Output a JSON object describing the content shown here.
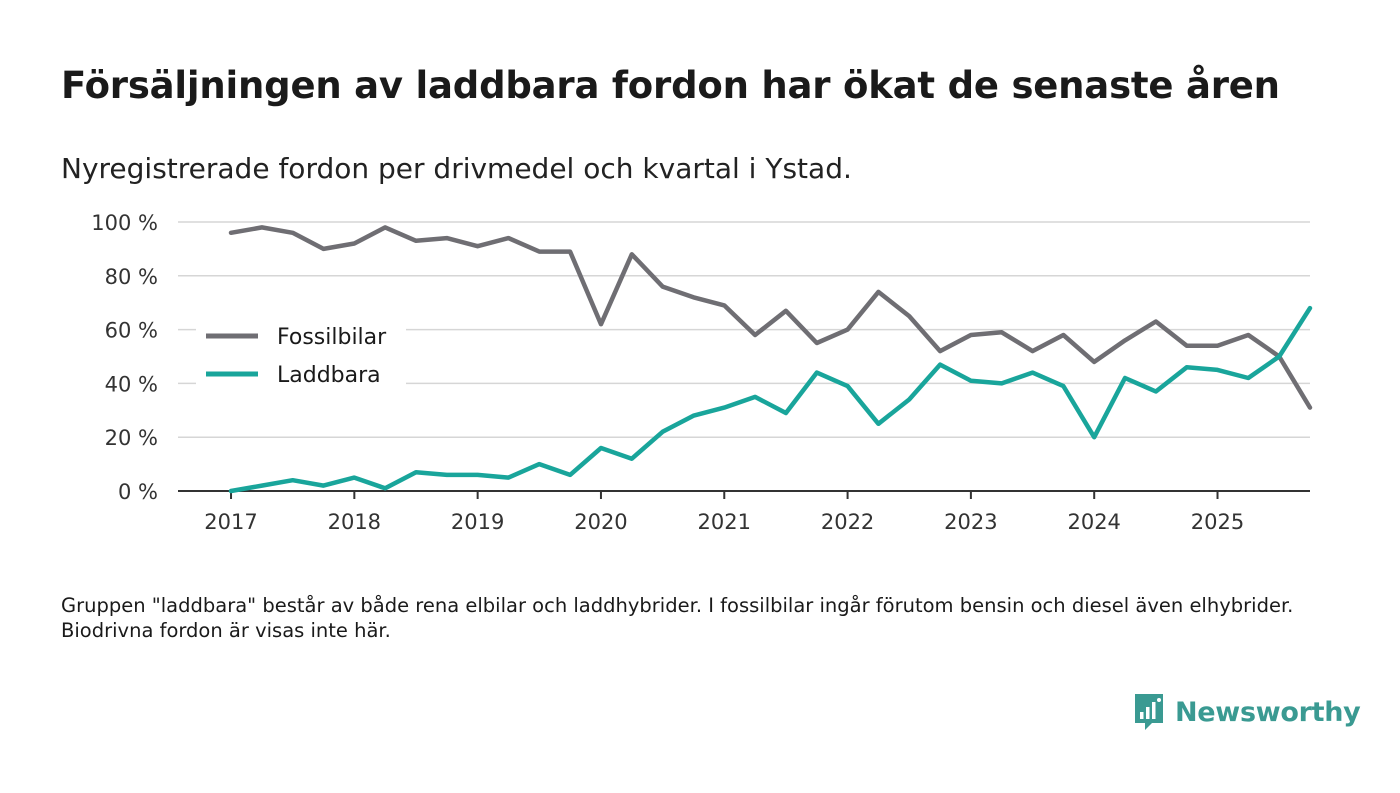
{
  "title": "Försäljningen av laddbara fordon har ökat de senaste åren",
  "subtitle": "Nyregistrerade fordon per drivmedel och kvartal i Ystad.",
  "note": "Gruppen \"laddbara\" består av både rena elbilar och laddhybrider. I fossilbilar ingår förutom bensin och diesel även elhybrider. Biodrivna fordon är visas inte här.",
  "brand": {
    "name": "Newsworthy",
    "color": "#3a9a92",
    "icon": "newsworthy-logo-icon"
  },
  "chart_data": {
    "type": "line",
    "ylim": [
      0,
      100
    ],
    "y_ticks": [
      0,
      20,
      40,
      60,
      80,
      100
    ],
    "y_tick_labels": [
      "0 %",
      "20 %",
      "40 %",
      "60 %",
      "80 %",
      "100 %"
    ],
    "x_tick_labels": [
      "2017",
      "2018",
      "2019",
      "2020",
      "2021",
      "2022",
      "2023",
      "2024",
      "2025"
    ],
    "x_tick_values": [
      2017,
      2018,
      2019,
      2020,
      2021,
      2022,
      2023,
      2024,
      2025
    ],
    "x_range": [
      2016.57,
      2025.75
    ],
    "grid": true,
    "legend_position": "left",
    "series": [
      {
        "name": "Fossilbilar",
        "color": "#6f6e73",
        "x": [
          2017,
          2017.25,
          2017.5,
          2017.75,
          2018,
          2018.25,
          2018.5,
          2018.75,
          2019,
          2019.25,
          2019.5,
          2019.75,
          2020,
          2020.25,
          2020.5,
          2020.75,
          2021,
          2021.25,
          2021.5,
          2021.75,
          2022,
          2022.25,
          2022.5,
          2022.75,
          2023,
          2023.25,
          2023.5,
          2023.75,
          2024,
          2024.25,
          2024.5,
          2024.75,
          2025,
          2025.25,
          2025.5,
          2025.75
        ],
        "values": [
          96,
          98,
          96,
          90,
          92,
          98,
          93,
          94,
          91,
          94,
          89,
          89,
          62,
          88,
          76,
          72,
          69,
          58,
          67,
          55,
          60,
          74,
          65,
          52,
          58,
          59,
          52,
          58,
          48,
          56,
          63,
          54,
          54,
          58,
          50,
          31
        ]
      },
      {
        "name": "Laddbara",
        "color": "#19a59b",
        "x": [
          2017,
          2017.25,
          2017.5,
          2017.75,
          2018,
          2018.25,
          2018.5,
          2018.75,
          2019,
          2019.25,
          2019.5,
          2019.75,
          2020,
          2020.25,
          2020.5,
          2020.75,
          2021,
          2021.25,
          2021.5,
          2021.75,
          2022,
          2022.25,
          2022.5,
          2022.75,
          2023,
          2023.25,
          2023.5,
          2023.75,
          2024,
          2024.25,
          2024.5,
          2024.75,
          2025,
          2025.25,
          2025.5,
          2025.75
        ],
        "values": [
          0,
          2,
          4,
          2,
          5,
          1,
          7,
          6,
          6,
          5,
          10,
          6,
          16,
          12,
          22,
          28,
          31,
          35,
          29,
          44,
          39,
          25,
          34,
          47,
          41,
          40,
          44,
          39,
          20,
          42,
          37,
          46,
          45,
          42,
          50,
          68
        ]
      }
    ]
  }
}
